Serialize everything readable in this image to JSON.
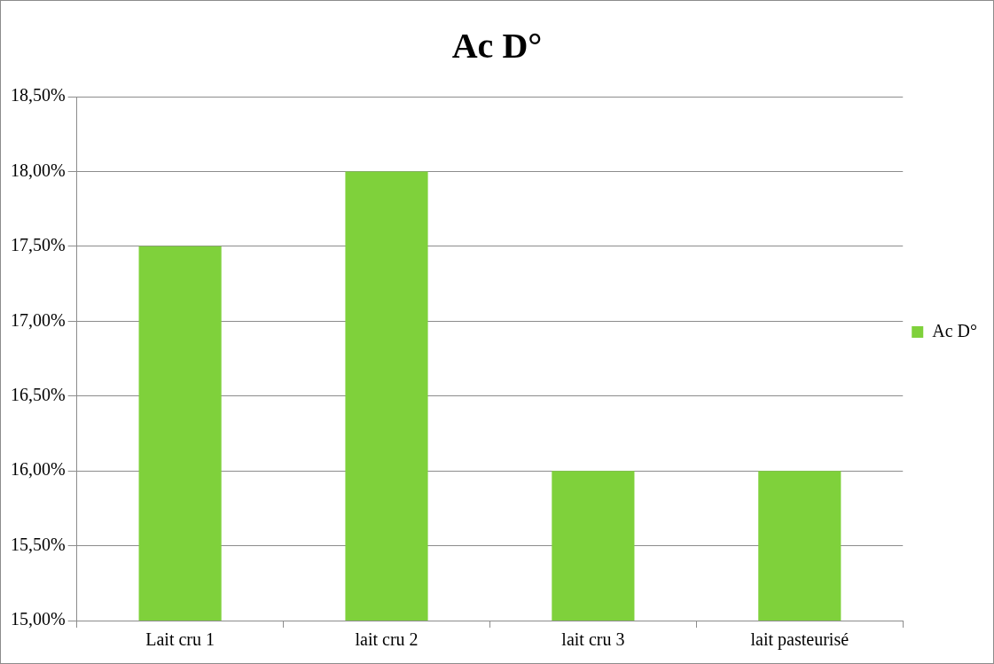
{
  "chart_data": {
    "type": "bar",
    "title": "Ac D°",
    "categories": [
      "Lait cru 1",
      "lait cru 2",
      "lait cru 3",
      "lait pasteurisé"
    ],
    "series": [
      {
        "name": "Ac D°",
        "color": "#7fd13b",
        "values": [
          17.5,
          18,
          16,
          16
        ]
      }
    ],
    "ylim": [
      15,
      18.5
    ],
    "yticks": [
      {
        "value": 15,
        "label": "15,00%"
      },
      {
        "value": 15.5,
        "label": "15,50%"
      },
      {
        "value": 16,
        "label": "16,00%"
      },
      {
        "value": 16.5,
        "label": "16,50%"
      },
      {
        "value": 17,
        "label": "17,00%"
      },
      {
        "value": 17.5,
        "label": "17,50%"
      },
      {
        "value": 18,
        "label": "18,00%"
      },
      {
        "value": 18.5,
        "label": "18,50%"
      }
    ],
    "grid": "y",
    "legend": "right"
  }
}
